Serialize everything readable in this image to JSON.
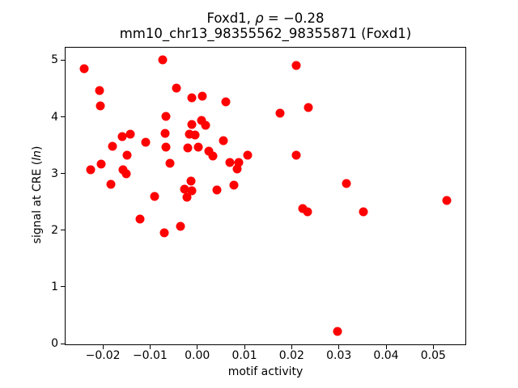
{
  "figure": {
    "title_line1": {
      "prefix": "Foxd1, ",
      "rho": "ρ",
      "suffix": " = −0.28",
      "full": "Foxd1, ρ = −0.28"
    },
    "title_line2": "mm10_chr13_98355562_98355871 (Foxd1)",
    "xlabel": "motif activity",
    "ylabel": {
      "prefix": "signal at CRE (",
      "italic": "ln",
      "suffix": ")",
      "full": "signal at CRE (ln)"
    }
  },
  "chart_data": {
    "type": "scatter",
    "title": "Foxd1, ρ = −0.28",
    "subtitle": "mm10_chr13_98355562_98355871 (Foxd1)",
    "xlabel": "motif activity",
    "ylabel": "signal at CRE (ln)",
    "marker_color": "#ff0000",
    "marker_diameter_px": 11,
    "grid": false,
    "legend": null,
    "xlim": [
      -0.0279,
      0.0568
    ],
    "ylim": [
      -0.014,
      5.22
    ],
    "xticks": {
      "values": [
        -0.02,
        -0.01,
        0.0,
        0.01,
        0.02,
        0.03,
        0.04,
        0.05
      ],
      "labels": [
        "−0.02",
        "−0.01",
        "0.00",
        "0.01",
        "0.02",
        "0.03",
        "0.04",
        "0.05"
      ]
    },
    "yticks": {
      "values": [
        0,
        1,
        2,
        3,
        4,
        5
      ],
      "labels": [
        "0",
        "1",
        "2",
        "3",
        "4",
        "5"
      ]
    },
    "points": [
      [
        -0.024,
        4.85
      ],
      [
        -0.0073,
        5.0
      ],
      [
        -0.0207,
        4.47
      ],
      [
        -0.0205,
        4.2
      ],
      [
        -0.0044,
        4.51
      ],
      [
        -0.0012,
        4.33
      ],
      [
        0.0011,
        4.36
      ],
      [
        0.0061,
        4.27
      ],
      [
        -0.0066,
        4.01
      ],
      [
        -0.0011,
        3.87
      ],
      [
        0.0009,
        3.93
      ],
      [
        0.0018,
        3.85
      ],
      [
        -0.0068,
        3.71
      ],
      [
        -0.0016,
        3.7
      ],
      [
        -0.0005,
        3.68
      ],
      [
        -0.0159,
        3.65
      ],
      [
        -0.0141,
        3.69
      ],
      [
        -0.018,
        3.48
      ],
      [
        -0.011,
        3.55
      ],
      [
        -0.0066,
        3.46
      ],
      [
        -0.002,
        3.45
      ],
      [
        0.0003,
        3.47
      ],
      [
        0.0055,
        3.58
      ],
      [
        0.0024,
        3.39
      ],
      [
        0.0033,
        3.31
      ],
      [
        -0.0148,
        3.32
      ],
      [
        -0.0203,
        3.17
      ],
      [
        -0.0057,
        3.18
      ],
      [
        0.0106,
        3.33
      ],
      [
        0.0069,
        3.2
      ],
      [
        0.0088,
        3.2
      ],
      [
        0.0085,
        3.08
      ],
      [
        -0.0226,
        3.06
      ],
      [
        -0.0157,
        3.06
      ],
      [
        -0.015,
        2.99
      ],
      [
        -0.0183,
        2.81
      ],
      [
        -0.0014,
        2.87
      ],
      [
        -0.0027,
        2.73
      ],
      [
        -0.0012,
        2.7
      ],
      [
        -0.0022,
        2.58
      ],
      [
        0.0042,
        2.71
      ],
      [
        0.0077,
        2.79
      ],
      [
        -0.0091,
        2.59
      ],
      [
        -0.0121,
        2.2
      ],
      [
        -0.0069,
        1.95
      ],
      [
        -0.0036,
        2.07
      ],
      [
        0.021,
        4.91
      ],
      [
        0.0235,
        4.17
      ],
      [
        0.0175,
        4.07
      ],
      [
        0.0209,
        3.33
      ],
      [
        0.0316,
        2.83
      ],
      [
        0.0224,
        2.38
      ],
      [
        0.0234,
        2.32
      ],
      [
        0.0352,
        2.32
      ],
      [
        0.0529,
        2.52
      ],
      [
        0.0297,
        0.22
      ]
    ]
  }
}
